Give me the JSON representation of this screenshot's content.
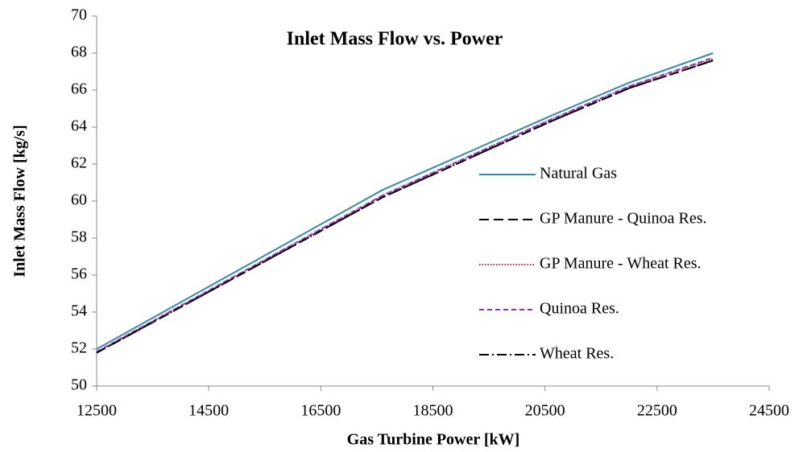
{
  "chart_data": {
    "type": "line",
    "title": "Inlet Mass Flow vs. Power",
    "x_label": "Gas Turbine Power [kW]",
    "y_label": "Inlet Mass Flow [kg/s]",
    "x": [
      12500,
      17600,
      20600,
      22000,
      23500
    ],
    "series": [
      {
        "name": "Natural Gas",
        "color": "#2e8bc0",
        "style": "solid",
        "values": [
          52.0,
          60.6,
          64.6,
          66.4,
          68.0
        ]
      },
      {
        "name": "GP Manure - Quinoa Res.",
        "color": "#000000",
        "style": "dashed",
        "values": [
          51.8,
          60.2,
          64.3,
          66.1,
          67.6
        ]
      },
      {
        "name": "GP Manure - Wheat Res.",
        "color": "#e02020",
        "style": "dotted",
        "values": [
          51.85,
          60.3,
          64.4,
          66.2,
          67.7
        ]
      },
      {
        "name": "Quinoa Res.",
        "color": "#8a2be2",
        "style": "short-dashed",
        "values": [
          51.85,
          60.3,
          64.4,
          66.2,
          67.75
        ]
      },
      {
        "name": "Wheat Res.",
        "color": "#000000",
        "style": "dash-dot",
        "values": [
          51.8,
          60.2,
          64.3,
          66.1,
          67.6
        ]
      }
    ],
    "xlim": [
      12500,
      24500
    ],
    "xticks": [
      12500,
      14500,
      16500,
      18500,
      20500,
      22500,
      24500
    ],
    "ylim": [
      50,
      70
    ],
    "yticks": [
      50,
      52,
      54,
      56,
      58,
      60,
      62,
      64,
      66,
      68,
      70
    ],
    "grid": false,
    "legend": "right"
  }
}
